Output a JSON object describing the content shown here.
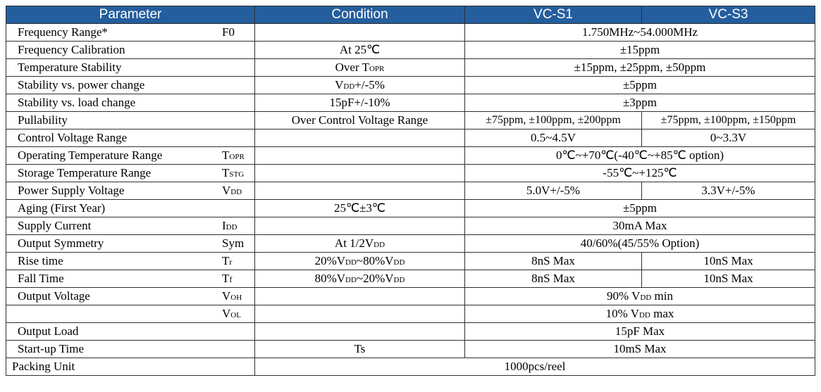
{
  "header": {
    "parameter": "Parameter",
    "condition": "Condition",
    "vc_s1": "VC-S1",
    "vc_s3": "VC-S3"
  },
  "rows": {
    "frequency_range": {
      "name": "Frequency Range*",
      "symbol": "F0",
      "value": "1.750MHz~54.000MHz"
    },
    "frequency_calibration": {
      "name": "Frequency Calibration",
      "condition": "At 25℃",
      "value": "±15ppm"
    },
    "temperature_stability": {
      "name": "Temperature Stability",
      "condition_main": "Over T",
      "condition_sub": "OPR",
      "value": "±15ppm, ±25ppm, ±50ppm"
    },
    "stability_power": {
      "name": "Stability vs. power change",
      "condition_main": "V",
      "condition_sub": "DD",
      "condition_tail": "+/-5%",
      "value": "±5ppm"
    },
    "stability_load": {
      "name": "Stability vs. load change",
      "condition": "15pF+/-10%",
      "value": "±3ppm"
    },
    "pullability": {
      "name": "Pullability",
      "condition": "Over Control Voltage Range",
      "s1": "±75ppm, ±100ppm, ±200ppm",
      "s3": "±75ppm, ±100ppm, ±150ppm"
    },
    "control_voltage": {
      "name": "Control Voltage Range",
      "s1": "0.5~4.5V",
      "s3": "0~3.3V"
    },
    "operating_temp": {
      "name": "Operating Temperature Range",
      "symbol_main": "T",
      "symbol_sub": "OPR",
      "value": "0℃~+70℃(-40℃~+85℃ option)"
    },
    "storage_temp": {
      "name": "Storage Temperature Range",
      "symbol_main": "T",
      "symbol_sub": "STG",
      "value": "-55℃~+125℃"
    },
    "power_supply": {
      "name": "Power Supply Voltage",
      "symbol_main": "V",
      "symbol_sub": "DD",
      "s1": "5.0V+/-5%",
      "s3": "3.3V+/-5%"
    },
    "aging": {
      "name": "Aging (First Year)",
      "condition": "25℃±3℃",
      "value": "±5ppm"
    },
    "supply_current": {
      "name": "Supply Current",
      "symbol_main": "I",
      "symbol_sub": "DD",
      "value": "30mA Max"
    },
    "output_symmetry": {
      "name": "Output Symmetry",
      "symbol": "Sym",
      "condition_main": "At 1/2V",
      "condition_sub": "DD",
      "value": "40/60%(45/55% Option)"
    },
    "rise_time": {
      "name": "Rise time",
      "symbol_main": "T",
      "symbol_sub": "r",
      "cond_a": "20%V",
      "cond_sub1": "DD",
      "cond_b": "~80%V",
      "cond_sub2": "DD",
      "s1": "8nS Max",
      "s3": "10nS Max"
    },
    "fall_time": {
      "name": "Fall Time",
      "symbol_main": "T",
      "symbol_sub": "f",
      "cond_a": "80%V",
      "cond_sub1": "DD",
      "cond_b": "~20%V",
      "cond_sub2": "DD",
      "s1": "8nS Max",
      "s3": "10nS Max"
    },
    "output_voltage_high": {
      "name": "Output Voltage",
      "symbol_main": "V",
      "symbol_sub": "OH",
      "value_a": "90% V",
      "value_sub": "DD",
      "value_b": " min"
    },
    "output_voltage_low": {
      "symbol_main": "V",
      "symbol_sub": "OL",
      "value_a": "10% V",
      "value_sub": "DD",
      "value_b": " max"
    },
    "output_load": {
      "name": "Output Load",
      "value": "15pF Max"
    },
    "startup_time": {
      "name": "Start-up Time",
      "condition": "Ts",
      "value": "10mS Max"
    },
    "packing_unit": {
      "name": "Packing Unit",
      "value": "1000pcs/reel"
    }
  },
  "colors": {
    "header_bg": "#245e9e",
    "header_text": "#ffffff",
    "border": "#2f2f2f"
  }
}
